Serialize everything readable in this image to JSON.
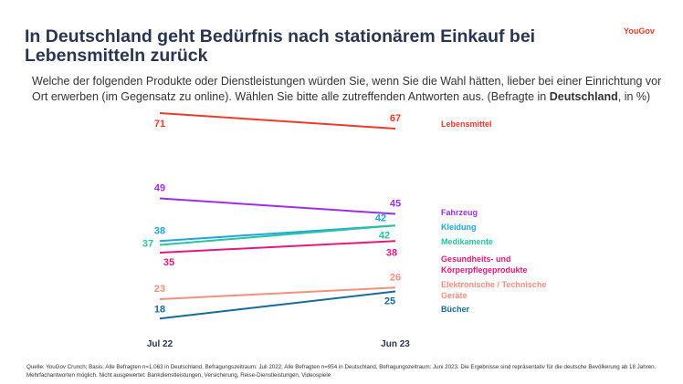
{
  "header": {
    "title": "In Deutschland geht Bedürfnis nach stationärem Einkauf bei Lebensmitteln zurück",
    "logo": "YouGov"
  },
  "subtitle": {
    "pre": "Welche der folgenden Produkte oder Dienstleistungen würden Sie, wenn Sie die Wahl hätten, lieber bei einer Einrichtung vor Ort erwerben (im Gegensatz zu online). Wählen Sie bitte alle zutreffenden Antworten aus. (Befragte in ",
    "bold": "Deutschland",
    "post": ", in %)"
  },
  "source": "Quelle: YouGov Crunch; Basis: Alle Befragten n=1.063 in Deutschland, Befragungszeitraum: Juli 2022; Alle Befragten n=954 in Deutschland, Befragungszeitraum: Juni 2023. Die Ergebnisse sind repräsentativ für die deutsche Bevölkerung ab 18 Jahren. Mehrfachantworten möglich. Nicht ausgewertet: Bankdienstleistungen, Versicherung, Reise-Dienstleistungen, Videospiele",
  "chart_data": {
    "type": "line",
    "categories": [
      "Jul 22",
      "Jun 23"
    ],
    "legend_placement": "right",
    "grid": false,
    "series": [
      {
        "name": "Lebensmittel",
        "values": [
          71,
          67
        ],
        "color": "#f0392b"
      },
      {
        "name": "Fahrzeug",
        "values": [
          49,
          45
        ],
        "color": "#9b30e8"
      },
      {
        "name": "Kleidung",
        "values": [
          38,
          42
        ],
        "color": "#1ea7dc"
      },
      {
        "name": "Medikamente",
        "values": [
          37,
          42
        ],
        "color": "#2cc3a0"
      },
      {
        "name": "Gesundheits- und Körperpflegeprodukte",
        "values": [
          35,
          38
        ],
        "color": "#e6197a"
      },
      {
        "name": "Elektronische / Technische Geräte",
        "values": [
          23,
          26
        ],
        "color": "#f4907f"
      },
      {
        "name": "Bücher",
        "values": [
          18,
          25
        ],
        "color": "#1a6a96"
      }
    ]
  }
}
